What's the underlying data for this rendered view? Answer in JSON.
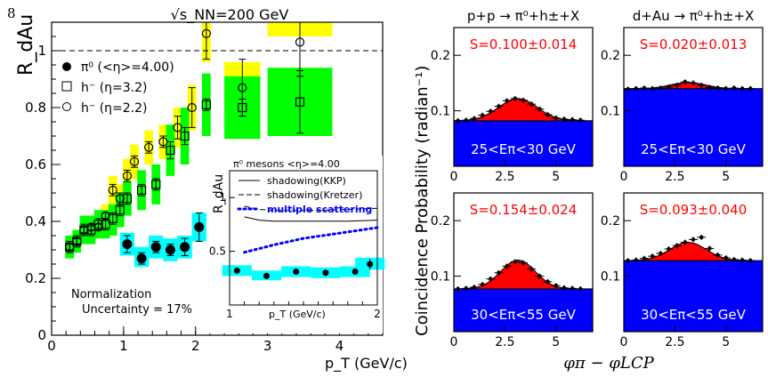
{
  "page_number": "8",
  "colors": {
    "yellow_band": "#ffff00",
    "green_band": "#00ff00",
    "cyan_band": "#00ffff",
    "red_fill": "#ff0000",
    "blue_fill": "#0000ff",
    "mult_scattering_line": "#0000ff",
    "panel_label_text": "#ff0000"
  },
  "chart_data": [
    {
      "id": "rdau",
      "type": "scatter",
      "title": "√s_NN=200 GeV",
      "xlabel": "p_T (GeV/c)",
      "ylabel": "R_dAu",
      "xlim": [
        0,
        4.6
      ],
      "ylim": [
        0,
        1.1
      ],
      "xticks": [
        "0",
        "1",
        "2",
        "3",
        "4"
      ],
      "yticks": [
        "0",
        "0.2",
        "0.4",
        "0.6",
        "0.8",
        "1"
      ],
      "reference_line": 1.0,
      "legend": [
        "π⁰ (<η>=4.00)",
        "h⁻ (η=3.2)",
        "h⁻ (η=2.2)"
      ],
      "annotation": [
        "Normalization",
        "Uncertainty = 17%"
      ],
      "series": [
        {
          "name": "π⁰ (<η>=4.00)",
          "marker": "filled-circle",
          "band_color": "cyan",
          "points": [
            {
              "x": 1.05,
              "y": 0.32,
              "err": 0.03,
              "band": [
                0.28,
                0.36
              ]
            },
            {
              "x": 1.25,
              "y": 0.27,
              "err": 0.02,
              "band": [
                0.24,
                0.31
              ]
            },
            {
              "x": 1.45,
              "y": 0.31,
              "err": 0.02,
              "band": [
                0.27,
                0.35
              ]
            },
            {
              "x": 1.65,
              "y": 0.3,
              "err": 0.02,
              "band": [
                0.26,
                0.34
              ]
            },
            {
              "x": 1.85,
              "y": 0.31,
              "err": 0.03,
              "band": [
                0.27,
                0.35
              ]
            },
            {
              "x": 2.05,
              "y": 0.38,
              "err": 0.05,
              "band": [
                0.33,
                0.43
              ]
            }
          ]
        },
        {
          "name": "h⁻ (η=3.2)",
          "marker": "open-square",
          "band_color": "green",
          "points": [
            {
              "x": 0.25,
              "y": 0.31,
              "err": 0.02,
              "band": [
                0.27,
                0.35
              ]
            },
            {
              "x": 0.35,
              "y": 0.33,
              "err": 0.02,
              "band": [
                0.29,
                0.37
              ]
            },
            {
              "x": 0.45,
              "y": 0.37,
              "err": 0.02,
              "band": [
                0.32,
                0.42
              ]
            },
            {
              "x": 0.55,
              "y": 0.37,
              "err": 0.02,
              "band": [
                0.32,
                0.42
              ]
            },
            {
              "x": 0.65,
              "y": 0.39,
              "err": 0.02,
              "band": [
                0.34,
                0.44
              ]
            },
            {
              "x": 0.75,
              "y": 0.39,
              "err": 0.02,
              "band": [
                0.34,
                0.44
              ]
            },
            {
              "x": 0.85,
              "y": 0.41,
              "err": 0.02,
              "band": [
                0.35,
                0.46
              ]
            },
            {
              "x": 0.95,
              "y": 0.44,
              "err": 0.02,
              "band": [
                0.38,
                0.5
              ]
            },
            {
              "x": 1.05,
              "y": 0.48,
              "err": 0.02,
              "band": [
                0.42,
                0.54
              ]
            },
            {
              "x": 1.25,
              "y": 0.51,
              "err": 0.02,
              "band": [
                0.44,
                0.58
              ]
            },
            {
              "x": 1.45,
              "y": 0.53,
              "err": 0.02,
              "band": [
                0.46,
                0.6
              ]
            },
            {
              "x": 1.65,
              "y": 0.65,
              "err": 0.03,
              "band": [
                0.56,
                0.74
              ]
            },
            {
              "x": 1.85,
              "y": 0.7,
              "err": 0.03,
              "band": [
                0.6,
                0.8
              ]
            },
            {
              "x": 2.15,
              "y": 0.81,
              "err": 0.02,
              "band": [
                0.7,
                0.92
              ]
            },
            {
              "x": 2.65,
              "y": 0.8,
              "err": 0.03,
              "band": [
                0.69,
                0.91
              ]
            },
            {
              "x": 3.45,
              "y": 0.82,
              "err": 0.11,
              "band": [
                0.7,
                0.94
              ]
            }
          ]
        },
        {
          "name": "h⁻ (η=2.2)",
          "marker": "open-circle",
          "band_color": "yellow",
          "points": [
            {
              "x": 0.25,
              "y": 0.31,
              "err": 0.01,
              "band": [
                0.28,
                0.34
              ]
            },
            {
              "x": 0.35,
              "y": 0.33,
              "err": 0.01,
              "band": [
                0.3,
                0.36
              ]
            },
            {
              "x": 0.45,
              "y": 0.37,
              "err": 0.01,
              "band": [
                0.33,
                0.41
              ]
            },
            {
              "x": 0.55,
              "y": 0.38,
              "err": 0.01,
              "band": [
                0.34,
                0.42
              ]
            },
            {
              "x": 0.65,
              "y": 0.38,
              "err": 0.01,
              "band": [
                0.34,
                0.42
              ]
            },
            {
              "x": 0.75,
              "y": 0.42,
              "err": 0.01,
              "band": [
                0.38,
                0.46
              ]
            },
            {
              "x": 0.85,
              "y": 0.51,
              "err": 0.02,
              "band": [
                0.46,
                0.56
              ]
            },
            {
              "x": 0.95,
              "y": 0.48,
              "err": 0.02,
              "band": [
                0.44,
                0.53
              ]
            },
            {
              "x": 1.05,
              "y": 0.56,
              "err": 0.02,
              "band": [
                0.5,
                0.62
              ]
            },
            {
              "x": 1.15,
              "y": 0.61,
              "err": 0.02,
              "band": [
                0.55,
                0.67
              ]
            },
            {
              "x": 1.35,
              "y": 0.66,
              "err": 0.02,
              "band": [
                0.6,
                0.72
              ]
            },
            {
              "x": 1.55,
              "y": 0.68,
              "err": 0.02,
              "band": [
                0.62,
                0.74
              ]
            },
            {
              "x": 1.75,
              "y": 0.73,
              "err": 0.04,
              "band": [
                0.66,
                0.8
              ]
            },
            {
              "x": 1.95,
              "y": 0.8,
              "err": 0.07,
              "band": [
                0.72,
                0.88
              ]
            },
            {
              "x": 2.15,
              "y": 1.06,
              "err": 0.09,
              "band": [
                0.96,
                1.1
              ]
            },
            {
              "x": 2.65,
              "y": 0.87,
              "err": 0.1,
              "band": [
                0.78,
                0.96
              ]
            },
            {
              "x": 3.45,
              "y": 1.03,
              "err": 0.12,
              "band": [
                1.05,
                1.1
              ]
            }
          ]
        }
      ],
      "inset": {
        "title": "π⁰ mesons <η>=4.00",
        "xlabel": "p_T (GeV/c)",
        "ylabel": "R_dAu",
        "xlim": [
          1,
          2
        ],
        "ylim": [
          0,
          1.25
        ],
        "xticks": [
          "1",
          "2"
        ],
        "yticks": [
          "0.5",
          "1"
        ],
        "legend": [
          "shadowing(KKP)",
          "shadowing(Kretzer)",
          "multiple scattering"
        ],
        "curves": [
          {
            "name": "shadowing(KKP)",
            "style": "solid",
            "x": [
              1.1,
              1.2,
              1.3,
              1.4,
              1.6,
              1.8,
              2.0
            ],
            "y": [
              0.82,
              0.79,
              0.78,
              0.78,
              0.78,
              0.78,
              0.79
            ]
          },
          {
            "name": "shadowing(Kretzer)",
            "style": "dashed",
            "x": [
              1.1,
              1.2,
              1.3,
              1.4,
              1.6,
              1.8,
              2.0
            ],
            "y": [
              0.92,
              0.89,
              0.88,
              0.88,
              0.88,
              0.89,
              0.9
            ]
          },
          {
            "name": "multiple scattering",
            "style": "dotted",
            "x": [
              1.1,
              1.3,
              1.5,
              1.7,
              1.9,
              2.0
            ],
            "y": [
              0.49,
              0.56,
              0.62,
              0.66,
              0.7,
              0.72
            ]
          }
        ],
        "points": [
          {
            "x": 1.05,
            "y": 0.32,
            "err": 0.02,
            "band": [
              0.27,
              0.37
            ]
          },
          {
            "x": 1.25,
            "y": 0.27,
            "err": 0.02,
            "band": [
              0.23,
              0.32
            ]
          },
          {
            "x": 1.45,
            "y": 0.31,
            "err": 0.02,
            "band": [
              0.26,
              0.36
            ]
          },
          {
            "x": 1.65,
            "y": 0.3,
            "err": 0.02,
            "band": [
              0.25,
              0.35
            ]
          },
          {
            "x": 1.85,
            "y": 0.31,
            "err": 0.02,
            "band": [
              0.26,
              0.36
            ]
          },
          {
            "x": 1.95,
            "y": 0.38,
            "err": 0.05,
            "band": [
              0.33,
              0.44
            ]
          }
        ]
      }
    },
    {
      "id": "coincidence",
      "type": "area",
      "ylabel": "Coincidence Probability (radian⁻¹)",
      "xlabel": "φπ − φLCP",
      "column_titles": [
        "p+p → π⁰+h±+X",
        "d+Au → π⁰+h±+X"
      ],
      "xlim": [
        0,
        6.8
      ],
      "ylim": [
        0,
        0.25
      ],
      "xticks": [
        "0",
        "2.5",
        "5"
      ],
      "yticks": [
        "0",
        "0.1",
        "0.2"
      ],
      "panels": [
        {
          "S": "S=0.100±0.014",
          "energy": "25<Eπ<30 GeV",
          "baseline": 0.082,
          "peak": 0.04,
          "sigma": 0.95,
          "points": [
            [
              0.2,
              0.082
            ],
            [
              0.6,
              0.083
            ],
            [
              1.0,
              0.086
            ],
            [
              1.4,
              0.092
            ],
            [
              1.8,
              0.099
            ],
            [
              2.2,
              0.108
            ],
            [
              2.6,
              0.118
            ],
            [
              3.0,
              0.122
            ],
            [
              3.4,
              0.119
            ],
            [
              3.8,
              0.112
            ],
            [
              4.2,
              0.103
            ],
            [
              4.6,
              0.093
            ],
            [
              5.0,
              0.087
            ],
            [
              5.4,
              0.085
            ],
            [
              5.8,
              0.084
            ],
            [
              6.2,
              0.083
            ]
          ]
        },
        {
          "S": "S=0.020±0.013",
          "energy": "25<Eπ<30 GeV",
          "baseline": 0.14,
          "peak": 0.011,
          "sigma": 0.85,
          "points": [
            [
              0.2,
              0.139
            ],
            [
              0.6,
              0.14
            ],
            [
              1.0,
              0.141
            ],
            [
              1.4,
              0.14
            ],
            [
              1.8,
              0.141
            ],
            [
              2.2,
              0.143
            ],
            [
              2.6,
              0.146
            ],
            [
              3.0,
              0.152
            ],
            [
              3.4,
              0.15
            ],
            [
              3.8,
              0.146
            ],
            [
              4.2,
              0.142
            ],
            [
              4.6,
              0.141
            ],
            [
              5.0,
              0.14
            ],
            [
              5.4,
              0.141
            ],
            [
              5.8,
              0.14
            ],
            [
              6.2,
              0.14
            ]
          ]
        },
        {
          "S": "S=0.154±0.024",
          "energy": "30<Eπ<55 GeV",
          "baseline": 0.077,
          "peak": 0.052,
          "sigma": 0.85,
          "points": [
            [
              0.2,
              0.077
            ],
            [
              0.6,
              0.078
            ],
            [
              1.0,
              0.08
            ],
            [
              1.4,
              0.085
            ],
            [
              1.8,
              0.095
            ],
            [
              2.2,
              0.106
            ],
            [
              2.6,
              0.118
            ],
            [
              3.0,
              0.126
            ],
            [
              3.4,
              0.124
            ],
            [
              3.8,
              0.113
            ],
            [
              4.2,
              0.1
            ],
            [
              4.6,
              0.09
            ],
            [
              5.0,
              0.083
            ],
            [
              5.4,
              0.079
            ],
            [
              5.8,
              0.078
            ],
            [
              6.2,
              0.077
            ]
          ]
        },
        {
          "S": "S=0.093±0.040",
          "energy": "30<Eπ<55 GeV",
          "baseline": 0.128,
          "peak": 0.033,
          "sigma": 0.9,
          "points": [
            [
              0.2,
              0.128
            ],
            [
              0.6,
              0.129
            ],
            [
              1.0,
              0.132
            ],
            [
              1.4,
              0.136
            ],
            [
              1.8,
              0.141
            ],
            [
              2.2,
              0.149
            ],
            [
              2.6,
              0.155
            ],
            [
              3.0,
              0.161
            ],
            [
              3.4,
              0.166
            ],
            [
              3.8,
              0.17
            ],
            [
              4.2,
              0.15
            ],
            [
              4.6,
              0.138
            ],
            [
              5.0,
              0.133
            ],
            [
              5.4,
              0.13
            ],
            [
              5.8,
              0.129
            ],
            [
              6.2,
              0.128
            ]
          ]
        }
      ]
    }
  ]
}
